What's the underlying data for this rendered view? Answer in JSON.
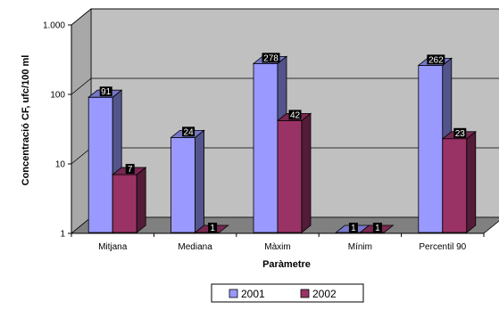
{
  "chart_data": {
    "type": "bar",
    "title": "",
    "xlabel": "Paràmetre",
    "ylabel": "Concentració CF, ufc/100 ml",
    "yscale": "log",
    "ylim": [
      1,
      1000
    ],
    "yticks": [
      {
        "value": 1,
        "label": "1"
      },
      {
        "value": 10,
        "label": "10"
      },
      {
        "value": 100,
        "label": "100"
      },
      {
        "value": 1000,
        "label": "1.000"
      }
    ],
    "categories": [
      "Mitjana",
      "Mediana",
      "Màxim",
      "Mínim",
      "Percentil 90"
    ],
    "series": [
      {
        "name": "2001",
        "color": "#9999ff",
        "values": [
          91,
          24,
          278,
          1,
          262
        ],
        "labels": [
          "91",
          "24",
          "278",
          "1",
          "262"
        ]
      },
      {
        "name": "2002",
        "color": "#993366",
        "values": [
          7,
          1,
          42,
          1,
          23
        ],
        "labels": [
          "7",
          "1",
          "42",
          "1",
          "23"
        ]
      }
    ],
    "grid": true,
    "legend_position": "bottom",
    "wall_color": "#c0c0c0",
    "floor_color": "#808080"
  }
}
